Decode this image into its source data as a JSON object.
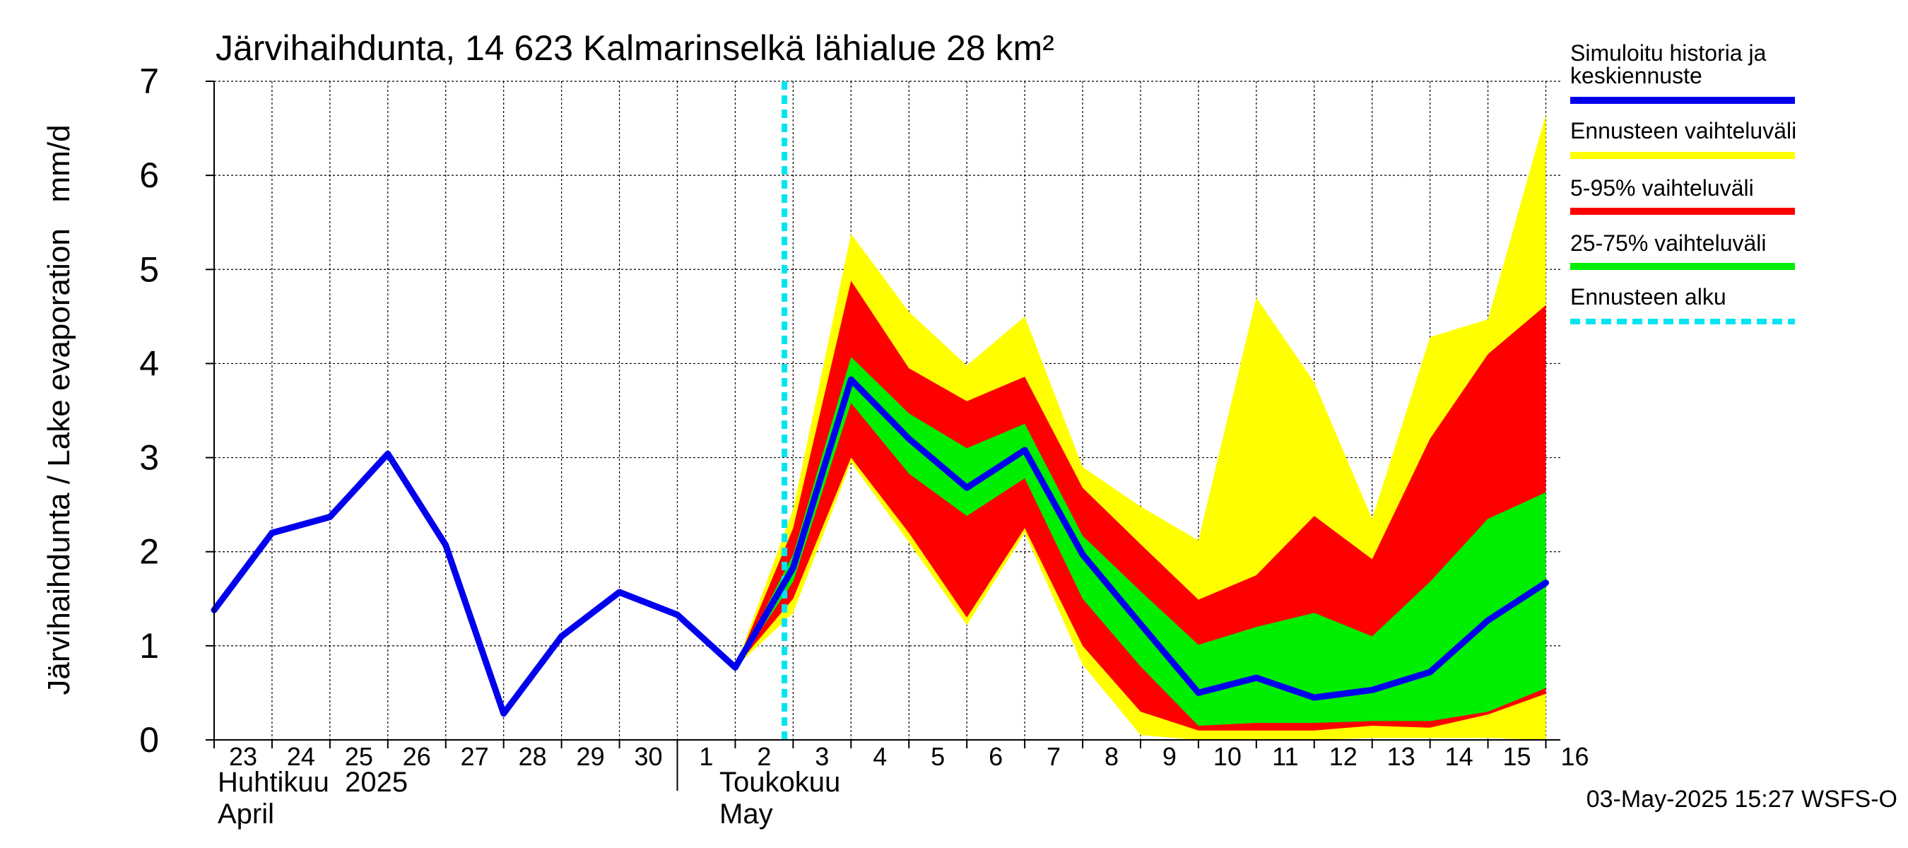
{
  "chart_data": {
    "type": "area",
    "title": "Järvihaihdunta, 14 623 Kalmarinselkä lähialue 28 km²",
    "ylabel": "Järvihaihdunta / Lake evaporation   mm/d",
    "ylim": [
      0,
      7
    ],
    "yticks": [
      0,
      1,
      2,
      3,
      4,
      5,
      6,
      7
    ],
    "grid": true,
    "x_start": "2025-04-23",
    "x_end": "2025-05-16",
    "xtick_labels": [
      "23",
      "24",
      "25",
      "26",
      "27",
      "28",
      "29",
      "30",
      "1",
      "2",
      "3",
      "4",
      "5",
      "6",
      "7",
      "8",
      "9",
      "10",
      "11",
      "12",
      "13",
      "14",
      "15",
      "16"
    ],
    "month_labels": [
      {
        "fi": "Huhtikuu  2025",
        "en": "April"
      },
      {
        "fi": "Toukokuu",
        "en": "May"
      }
    ],
    "forecast_start": "2025-05-03",
    "legend_position": "right",
    "series": [
      {
        "name": "Simuloitu historia ja keskiennuste",
        "color": "#0000ee",
        "x": [
          "2025-04-23",
          "2025-04-24",
          "2025-04-25",
          "2025-04-26",
          "2025-04-27",
          "2025-04-28",
          "2025-04-29",
          "2025-04-30",
          "2025-05-01",
          "2025-05-02",
          "2025-05-03",
          "2025-05-04",
          "2025-05-05",
          "2025-05-06",
          "2025-05-07",
          "2025-05-08",
          "2025-05-09",
          "2025-05-10",
          "2025-05-11",
          "2025-05-12",
          "2025-05-13",
          "2025-05-14",
          "2025-05-15",
          "2025-05-16"
        ],
        "values": [
          1.38,
          2.2,
          2.37,
          3.04,
          2.07,
          0.28,
          1.1,
          1.57,
          1.33,
          0.77,
          1.83,
          3.83,
          3.2,
          2.68,
          3.08,
          1.97,
          1.23,
          0.5,
          0.66,
          0.45,
          0.53,
          0.72,
          1.27,
          1.67
        ]
      },
      {
        "name": "Ennusteen vaihteluväli",
        "color": "#ffff00",
        "x": [
          "2025-05-02",
          "2025-05-03",
          "2025-05-04",
          "2025-05-05",
          "2025-05-06",
          "2025-05-07",
          "2025-05-08",
          "2025-05-09",
          "2025-05-10",
          "2025-05-11",
          "2025-05-12",
          "2025-05-13",
          "2025-05-14",
          "2025-05-15",
          "2025-05-16"
        ],
        "upper": [
          0.77,
          2.45,
          5.38,
          4.55,
          3.98,
          4.5,
          2.9,
          2.48,
          2.12,
          4.7,
          3.8,
          2.35,
          4.28,
          4.47,
          6.65
        ],
        "lower": [
          0.77,
          1.35,
          2.95,
          2.1,
          1.22,
          2.2,
          0.8,
          0.05,
          0.0,
          0.0,
          0.0,
          0.02,
          0.02,
          0.02,
          0.0
        ]
      },
      {
        "name": "5-95% vaihteluväli",
        "color": "#ff0000",
        "x": [
          "2025-05-02",
          "2025-05-03",
          "2025-05-04",
          "2025-05-05",
          "2025-05-06",
          "2025-05-07",
          "2025-05-08",
          "2025-05-09",
          "2025-05-10",
          "2025-05-11",
          "2025-05-12",
          "2025-05-13",
          "2025-05-14",
          "2025-05-15",
          "2025-05-16"
        ],
        "upper": [
          0.77,
          2.25,
          4.88,
          3.95,
          3.6,
          3.86,
          2.68,
          2.08,
          1.49,
          1.75,
          2.38,
          1.92,
          3.2,
          4.1,
          4.62
        ],
        "lower": [
          0.77,
          1.5,
          3.0,
          2.2,
          1.3,
          2.25,
          1.0,
          0.3,
          0.1,
          0.1,
          0.1,
          0.15,
          0.13,
          0.27,
          0.49
        ]
      },
      {
        "name": "25-75% vaihteluväli",
        "color": "#00ee00",
        "x": [
          "2025-05-02",
          "2025-05-03",
          "2025-05-04",
          "2025-05-05",
          "2025-05-06",
          "2025-05-07",
          "2025-05-08",
          "2025-05-09",
          "2025-05-10",
          "2025-05-11",
          "2025-05-12",
          "2025-05-13",
          "2025-05-14",
          "2025-05-15",
          "2025-05-16"
        ],
        "upper": [
          0.77,
          1.97,
          4.07,
          3.47,
          3.1,
          3.36,
          2.17,
          1.58,
          1.01,
          1.2,
          1.35,
          1.1,
          1.68,
          2.35,
          2.63
        ],
        "lower": [
          0.77,
          1.68,
          3.58,
          2.83,
          2.38,
          2.78,
          1.5,
          0.78,
          0.15,
          0.18,
          0.18,
          0.2,
          0.2,
          0.3,
          0.55
        ]
      },
      {
        "name": "Ennusteen alku",
        "color": "#00e5ee"
      }
    ]
  },
  "footer": {
    "timestamp": "03-May-2025 15:27 WSFS-O"
  }
}
